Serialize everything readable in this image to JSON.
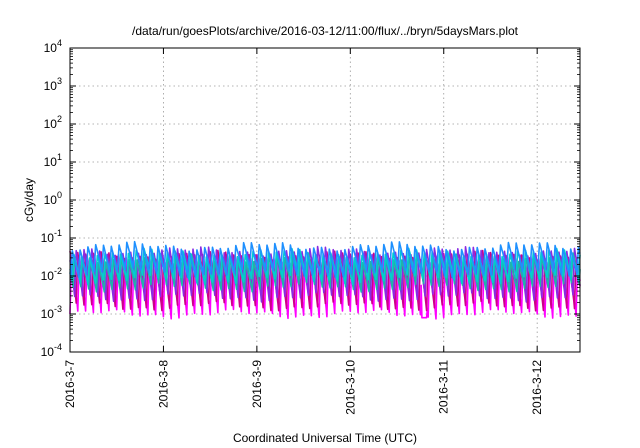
{
  "chart_data": {
    "type": "line",
    "title": "/data/run/goesPlots/archive/2016-03-12/11:00/flux/../bryn/5daysMars.plot",
    "xlabel": "Coordinated Universal Time (UTC)",
    "ylabel": "cGy/day",
    "x_range": [
      "2016-03-07T00:00",
      "2016-03-12T11:00"
    ],
    "x_tick_labels": [
      "2016-3-7",
      "2016-3-8",
      "2016-3-9",
      "2016-3-10",
      "2016-3-11",
      "2016-3-12"
    ],
    "x_ticks": [
      "2016-03-07",
      "2016-03-08",
      "2016-03-09",
      "2016-03-10",
      "2016-03-11",
      "2016-03-12"
    ],
    "yscale": "log",
    "ylim": [
      0.0001,
      10000
    ],
    "y_ticks": [
      {
        "base": "10",
        "exp": "-4"
      },
      {
        "base": "10",
        "exp": "-3"
      },
      {
        "base": "10",
        "exp": "-2"
      },
      {
        "base": "10",
        "exp": "-1"
      },
      {
        "base": "10",
        "exp": "0"
      },
      {
        "base": "10",
        "exp": "1"
      },
      {
        "base": "10",
        "exp": "2"
      },
      {
        "base": "10",
        "exp": "3"
      },
      {
        "base": "10",
        "exp": "4"
      }
    ],
    "grid": true,
    "legend": "none",
    "oscillation": {
      "cycles_per_day": 12,
      "sawtooth_rise_fraction": 0.2
    },
    "series": [
      {
        "color": "#ff00ff",
        "peak": 0.028,
        "trough": 0.001,
        "phase": 0.0
      },
      {
        "color": "#cc0088",
        "peak": 0.035,
        "trough": 0.0016,
        "phase": 0.02
      },
      {
        "color": "#8a2be2",
        "peak": 0.045,
        "trough": 0.0028,
        "phase": 0.04
      },
      {
        "color": "#20b2aa",
        "peak": 0.03,
        "trough": 0.005,
        "phase": 0.06
      },
      {
        "color": "#00ced1",
        "peak": 0.04,
        "trough": 0.008,
        "phase": 0.07
      },
      {
        "color": "#1e90ff",
        "peak": 0.06,
        "trough": 0.012,
        "phase": 0.09
      }
    ],
    "annotations": [
      {
        "x": "2016-03-10T19:00",
        "note": "dip",
        "y": 0.0008
      }
    ]
  }
}
